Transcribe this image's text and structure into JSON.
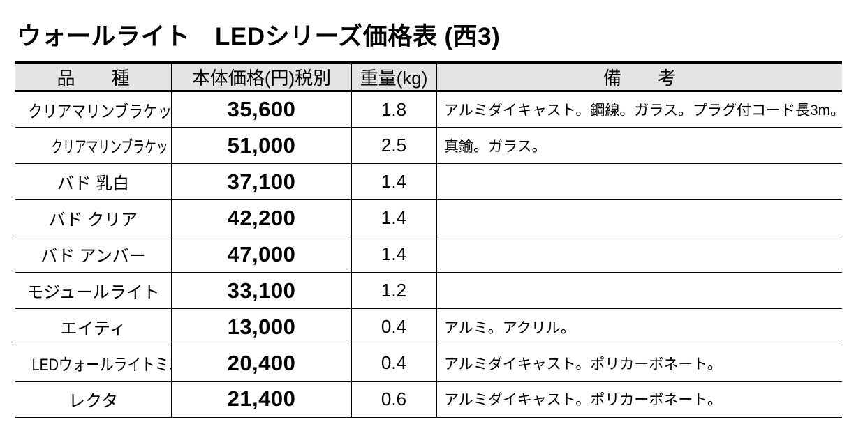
{
  "title": "ウォールライト　LEDシリーズ価格表 (西3)",
  "colors": {
    "page_bg": "#ffffff",
    "header_bg": "#e4e4e4",
    "border": "#000000",
    "text": "#000000"
  },
  "table": {
    "headers": [
      "品　　種",
      "本体価格(円)税別",
      "重量(kg)",
      "備　　考"
    ],
    "rows": [
      {
        "name": "クリアマリンブラケット",
        "price": "35,600",
        "weight": "1.8",
        "remark": "アルミダイキャスト。鋼線。ガラス。プラグ付コード長3m。"
      },
      {
        "name": "クリアマリンブラケット ブラス",
        "price": "51,000",
        "weight": "2.5",
        "remark": "真鍮。ガラス。"
      },
      {
        "name": "バド 乳白",
        "price": "37,100",
        "weight": "1.4",
        "remark": ""
      },
      {
        "name": "バド クリア",
        "price": "42,200",
        "weight": "1.4",
        "remark": ""
      },
      {
        "name": "バド アンバー",
        "price": "47,000",
        "weight": "1.4",
        "remark": ""
      },
      {
        "name": "モジュールライト",
        "price": "33,100",
        "weight": "1.2",
        "remark": ""
      },
      {
        "name": "エイティ",
        "price": "13,000",
        "weight": "0.4",
        "remark": "アルミ。アクリル。"
      },
      {
        "name": "LEDウォールライトミニ",
        "price": "20,400",
        "weight": "0.4",
        "remark": "アルミダイキャスト。ポリカーボネート。"
      },
      {
        "name": "レクタ",
        "price": "21,400",
        "weight": "0.6",
        "remark": "アルミダイキャスト。ポリカーボネート。"
      }
    ]
  }
}
